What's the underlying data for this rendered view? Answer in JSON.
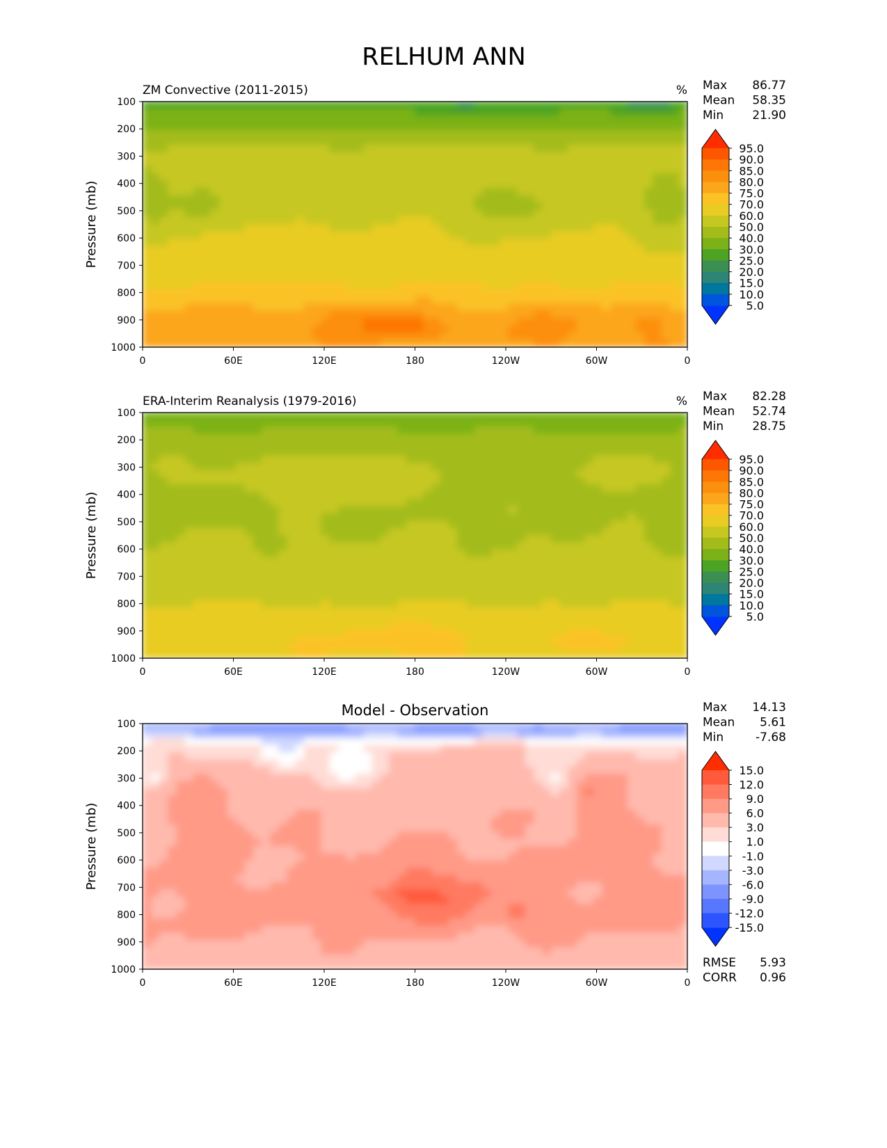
{
  "figure_title": "RELHUM ANN",
  "colors": {
    "abs_levels": [
      "#0033ff",
      "#0055dd",
      "#00779e",
      "#2d8575",
      "#3c8f52",
      "#4da424",
      "#7cb218",
      "#a3bc1a",
      "#c6c720",
      "#e8cc24",
      "#fbc225",
      "#fca61b",
      "#fc8f0e",
      "#fd7606",
      "#fd5800",
      "#ff2d00"
    ],
    "diff_levels": [
      "#0033ff",
      "#2c55ff",
      "#5877ff",
      "#7d94ff",
      "#a6b5ff",
      "#d0d8ff",
      "#ffffff",
      "#ffdcd6",
      "#ffb9ad",
      "#ff9a87",
      "#ff7a60",
      "#ff5a3c",
      "#ff2d00"
    ]
  },
  "chart_data": [
    {
      "type": "heatmap",
      "title": "ZM Convective (2011-2015)",
      "units": "%",
      "ylabel": "Pressure (mb)",
      "xticks": [
        "0",
        "60E",
        "120E",
        "180",
        "120W",
        "60W",
        "0"
      ],
      "yticks": [
        "100",
        "200",
        "300",
        "400",
        "500",
        "600",
        "700",
        "800",
        "900",
        "1000"
      ],
      "xlim": [
        0,
        360
      ],
      "ylim": [
        1000,
        100
      ],
      "levels": [
        "5.0",
        "10.0",
        "15.0",
        "20.0",
        "25.0",
        "30.0",
        "40.0",
        "50.0",
        "60.0",
        "70.0",
        "75.0",
        "80.0",
        "85.0",
        "90.0",
        "95.0"
      ],
      "palette": "abs",
      "stats": [
        {
          "label": "Max",
          "value": "86.77"
        },
        {
          "label": "Mean",
          "value": "58.35"
        },
        {
          "label": "Min",
          "value": "21.90"
        }
      ]
    },
    {
      "type": "heatmap",
      "title": "ERA-Interim Reanalysis (1979-2016)",
      "units": "%",
      "ylabel": "Pressure (mb)",
      "xticks": [
        "0",
        "60E",
        "120E",
        "180",
        "120W",
        "60W",
        "0"
      ],
      "yticks": [
        "100",
        "200",
        "300",
        "400",
        "500",
        "600",
        "700",
        "800",
        "900",
        "1000"
      ],
      "xlim": [
        0,
        360
      ],
      "ylim": [
        1000,
        100
      ],
      "levels": [
        "5.0",
        "10.0",
        "15.0",
        "20.0",
        "25.0",
        "30.0",
        "40.0",
        "50.0",
        "60.0",
        "70.0",
        "75.0",
        "80.0",
        "85.0",
        "90.0",
        "95.0"
      ],
      "palette": "abs",
      "stats": [
        {
          "label": "Max",
          "value": "82.28"
        },
        {
          "label": "Mean",
          "value": "52.74"
        },
        {
          "label": "Min",
          "value": "28.75"
        }
      ]
    },
    {
      "type": "heatmap",
      "title": "Model - Observation",
      "units": "",
      "ylabel": "Pressure (mb)",
      "xticks": [
        "0",
        "60E",
        "120E",
        "180",
        "120W",
        "60W",
        "0"
      ],
      "yticks": [
        "100",
        "200",
        "300",
        "400",
        "500",
        "600",
        "700",
        "800",
        "900",
        "1000"
      ],
      "xlim": [
        0,
        360
      ],
      "ylim": [
        1000,
        100
      ],
      "levels": [
        "-15.0",
        "-12.0",
        "-9.0",
        "-6.0",
        "-3.0",
        "-1.0",
        "1.0",
        "3.0",
        "6.0",
        "9.0",
        "12.0",
        "15.0"
      ],
      "palette": "diff",
      "stats": [
        {
          "label": "Max",
          "value": "14.13"
        },
        {
          "label": "Mean",
          "value": "5.61"
        },
        {
          "label": "Min",
          "value": "-7.68"
        }
      ],
      "bottom_stats": [
        {
          "label": "RMSE",
          "value": "5.93"
        },
        {
          "label": "CORR",
          "value": "0.96"
        }
      ]
    }
  ]
}
